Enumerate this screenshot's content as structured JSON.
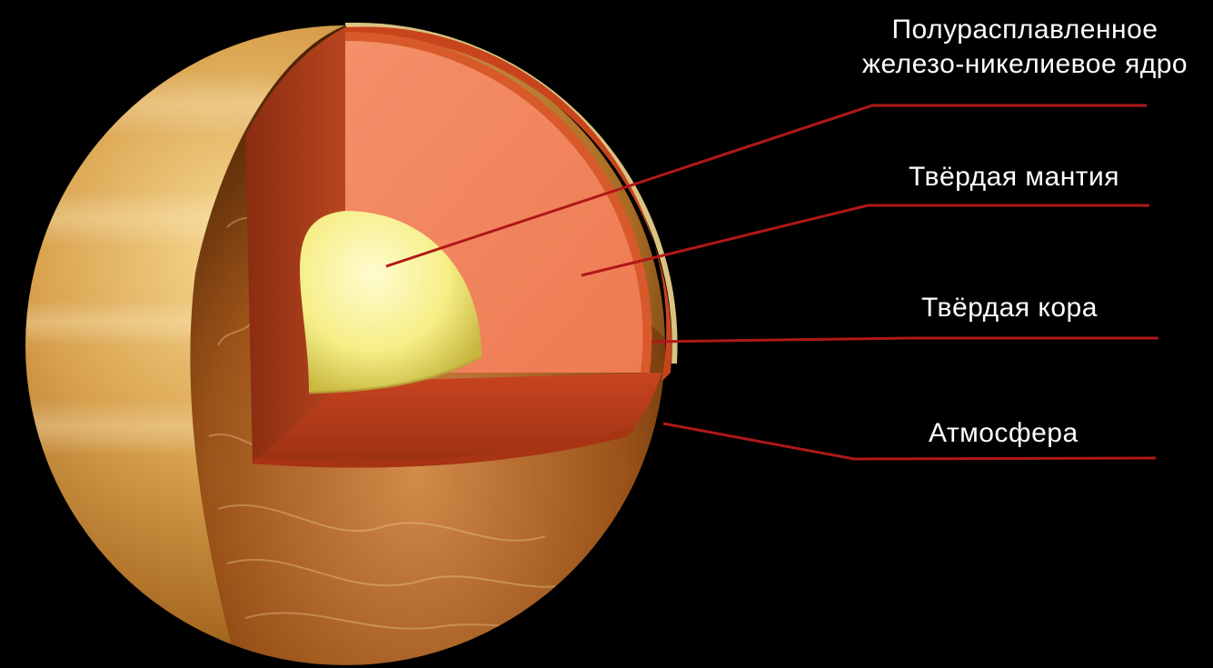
{
  "labels": {
    "core_line1": "Полурасплавленное",
    "core_line2": "железо-никелиевое ядро",
    "mantle": "Твёрдая мантия",
    "crust": "Твёрдая кора",
    "atmosphere": "Атмосфера"
  },
  "colors": {
    "background": "#000000",
    "leader_line": "#b01818",
    "core": "#f6f08a",
    "mantle": "#f08a5e",
    "crust": "#c8441c",
    "surface": "#c98a3a"
  }
}
